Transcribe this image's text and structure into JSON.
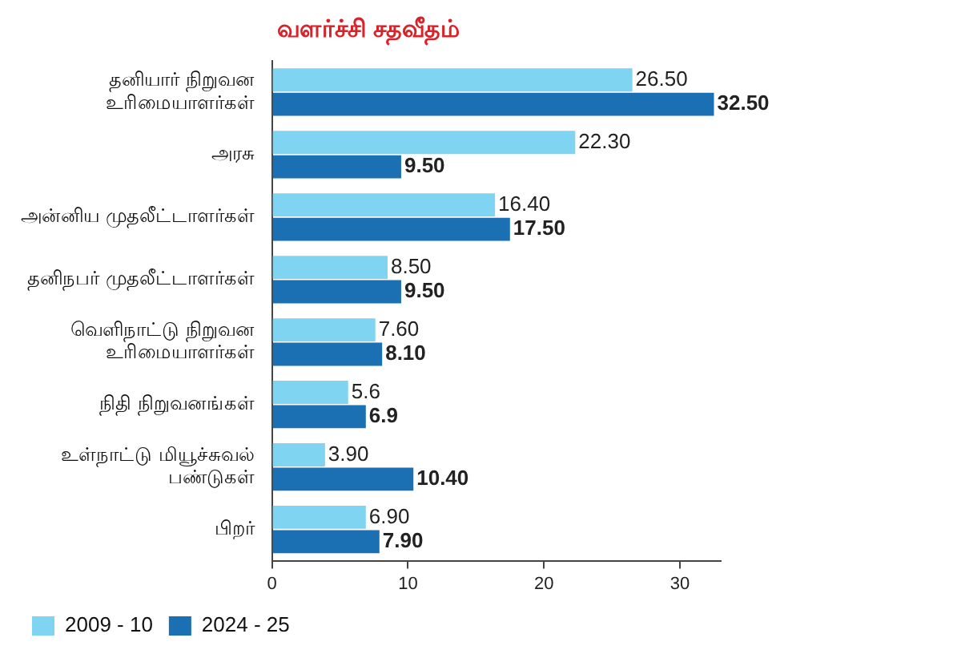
{
  "chart_data": {
    "type": "bar",
    "orientation": "horizontal",
    "title": "வளர்ச்சி சதவீதம்",
    "categories": [
      "தனியார் நிறுவன\nஉரிமையாளர்கள்",
      "அரசு",
      "அன்னிய முதலீட்டாளர்கள்",
      "தனிநபர் முதலீட்டாளர்கள்",
      "வெளிநாட்டு நிறுவன\nஉரிமையாளர்கள்",
      "நிதி நிறுவனங்கள்",
      "உள்நாட்டு மியூச்சுவல்\nபண்டுகள்",
      "பிறர்"
    ],
    "series": [
      {
        "name": "2009 - 10",
        "color": "#7fd4f2",
        "values": [
          26.5,
          22.3,
          16.4,
          8.5,
          7.6,
          5.6,
          3.9,
          6.9
        ],
        "value_labels": [
          "26.50",
          "22.30",
          "16.40",
          "8.50",
          "7.60",
          "5.6",
          "3.90",
          "6.90"
        ]
      },
      {
        "name": "2024 - 25",
        "color": "#1b6fb3",
        "values": [
          32.5,
          9.5,
          17.5,
          9.5,
          8.1,
          6.9,
          10.4,
          7.9
        ],
        "value_labels": [
          "32.50",
          "9.50",
          "17.50",
          "9.50",
          "8.10",
          "6.9",
          "10.40",
          "7.90"
        ]
      }
    ],
    "xlim": [
      0,
      33
    ],
    "xticks": [
      0,
      10,
      20,
      30
    ],
    "grid": false,
    "legend": "bottom left"
  }
}
